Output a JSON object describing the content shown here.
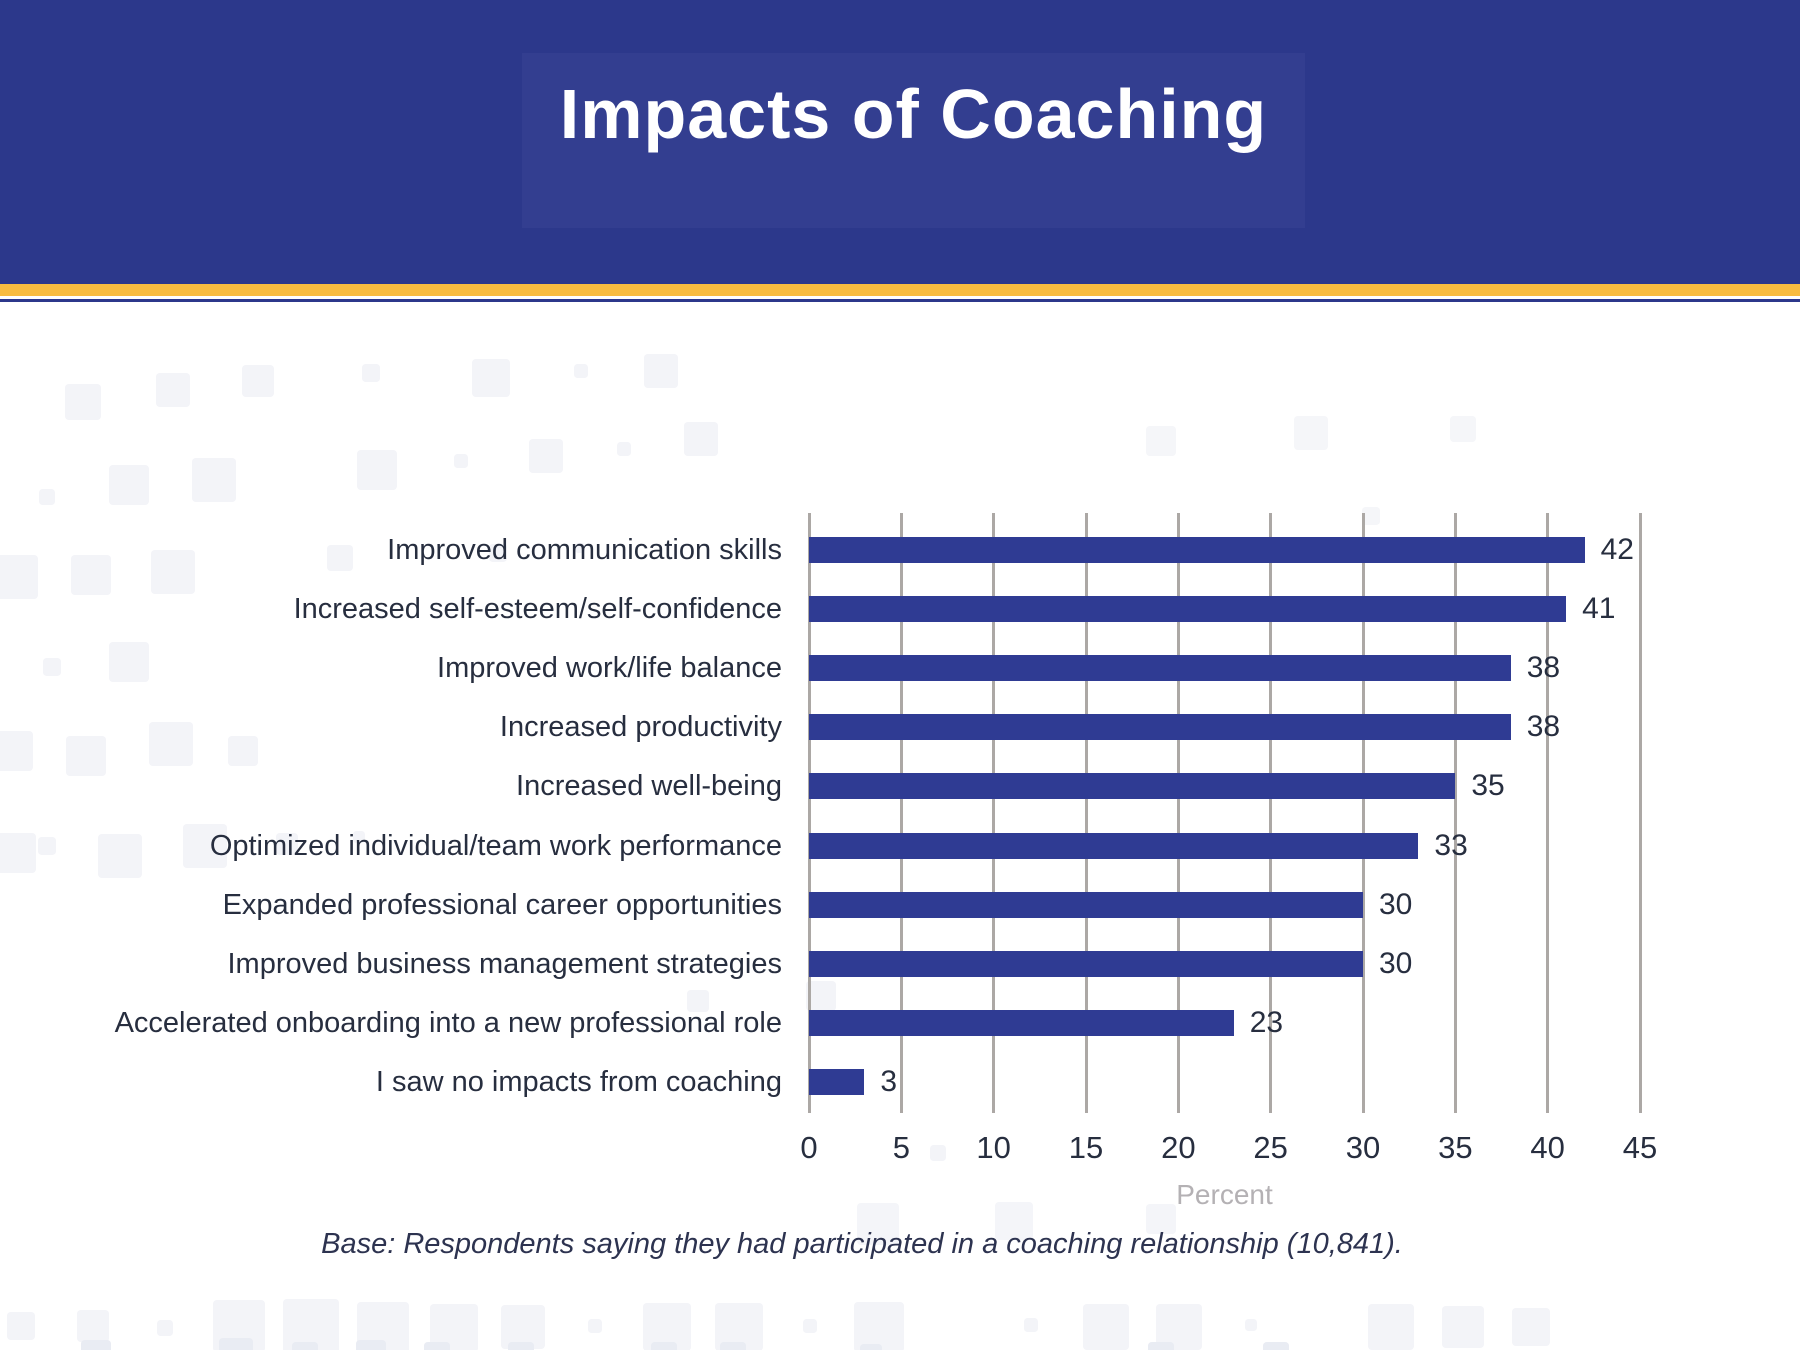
{
  "header": {
    "title": "Impacts of Coaching"
  },
  "chart_data": {
    "type": "bar",
    "orientation": "horizontal",
    "title": "Impacts of Coaching",
    "categories": [
      "Improved communication skills",
      "Increased self-esteem/self-confidence",
      "Improved work/life balance",
      "Increased productivity",
      "Increased well-being",
      "Optimized individual/team work performance",
      "Expanded professional career opportunities",
      "Improved business management strategies",
      "Accelerated onboarding into a new professional role",
      "I saw no impacts from coaching"
    ],
    "values": [
      42,
      41,
      38,
      38,
      35,
      33,
      30,
      30,
      23,
      3
    ],
    "xlabel": "Percent",
    "ylabel": "",
    "xlim": [
      0,
      45
    ],
    "xticks": [
      0,
      5,
      10,
      15,
      20,
      25,
      30,
      35,
      40,
      45
    ],
    "grid": true,
    "legend": "none",
    "bar_color": "#2f3b93",
    "gridline_color": "#aca8a5"
  },
  "footer": {
    "note": "Base: Respondents saying they had participated in a coaching relationship (10,841)."
  },
  "colors": {
    "header_background": "#2c388b",
    "title_box_background": "#333e90",
    "gold_stripe": "#f8bc40",
    "bar_blue": "#2f3b93",
    "text_navy": "#272e3f",
    "axis_title_gray": "#b4b1b4"
  }
}
